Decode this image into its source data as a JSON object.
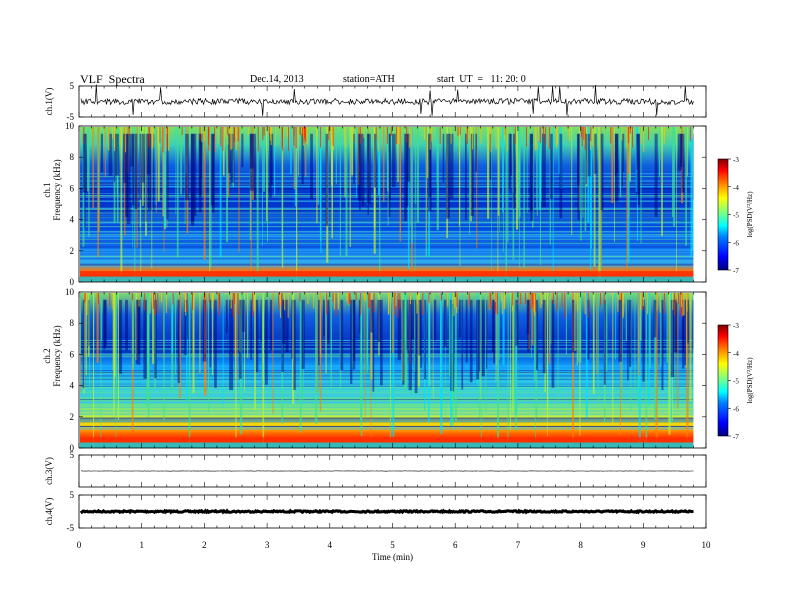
{
  "header": {
    "title": "VLF  Spectra",
    "date": "Dec.14, 2013",
    "station": "station=ATH",
    "start": "start  UT  =   11: 20: 0"
  },
  "colors": {
    "colormap": [
      "#00007f",
      "#0000ff",
      "#0080ff",
      "#00ffff",
      "#80ff80",
      "#ffff00",
      "#ff8000",
      "#ff0000",
      "#7f0000"
    ]
  },
  "chart_data": [
    {
      "type": "line",
      "ylabel": "ch.1(V)",
      "ylim": [
        -5,
        5
      ],
      "yticks": [
        "5",
        "-5"
      ],
      "description_values": {
        "baseline_v": -0.5,
        "noise_amplitude_v": 1.0
      }
    },
    {
      "type": "heatmap",
      "ylabel": "ch.1\nFrequency  (kHz)",
      "ylabel_channel": "ch.1",
      "ylabel_freq": "Frequency  (kHz)",
      "ylim": [
        0,
        10
      ],
      "yticks": [
        "0",
        "2",
        "4",
        "6",
        "8",
        "10"
      ],
      "colorbar_label": "log(PSD(V²/Hz)",
      "colorbar_range": [
        -7,
        -3
      ],
      "colorbar_ticks": [
        "-3",
        "-4",
        "-5",
        "-6",
        "-7"
      ],
      "dark_band_frequency_khz": [
        3.5,
        7
      ],
      "strong_band_frequency_khz": [
        0,
        0.8
      ]
    },
    {
      "type": "heatmap",
      "ylabel": "ch.2\nFrequency  (kHz)",
      "ylabel_channel": "ch.2",
      "ylabel_freq": "Frequency  (kHz)",
      "ylim": [
        0,
        10
      ],
      "yticks": [
        "0",
        "2",
        "4",
        "6",
        "8",
        "10"
      ],
      "colorbar_label": "log(PSD(V²/Hz)",
      "colorbar_range": [
        -7,
        -3
      ],
      "colorbar_ticks": [
        "-3",
        "-4",
        "-5",
        "-6",
        "-7"
      ],
      "dark_band_frequency_khz": [
        5,
        7
      ],
      "strong_band_frequency_khz": [
        0,
        1.5
      ]
    },
    {
      "type": "line",
      "ylabel": "ch.3(V)",
      "ylim": [
        -5,
        5
      ],
      "yticks": [
        "5"
      ],
      "description_values": {
        "baseline_v": 0.0
      }
    },
    {
      "type": "line",
      "ylabel": "ch.4(V)",
      "ylim": [
        -5,
        5
      ],
      "yticks": [
        "5",
        "-5"
      ],
      "description_values": {
        "baseline_v": -0.2
      }
    }
  ],
  "x_axis": {
    "xlabel": "Time  (min)",
    "xlim": [
      0,
      10
    ],
    "xticks": [
      "0",
      "1",
      "2",
      "3",
      "4",
      "5",
      "6",
      "7",
      "8",
      "9",
      "10"
    ],
    "data_end_min": 9.8
  }
}
